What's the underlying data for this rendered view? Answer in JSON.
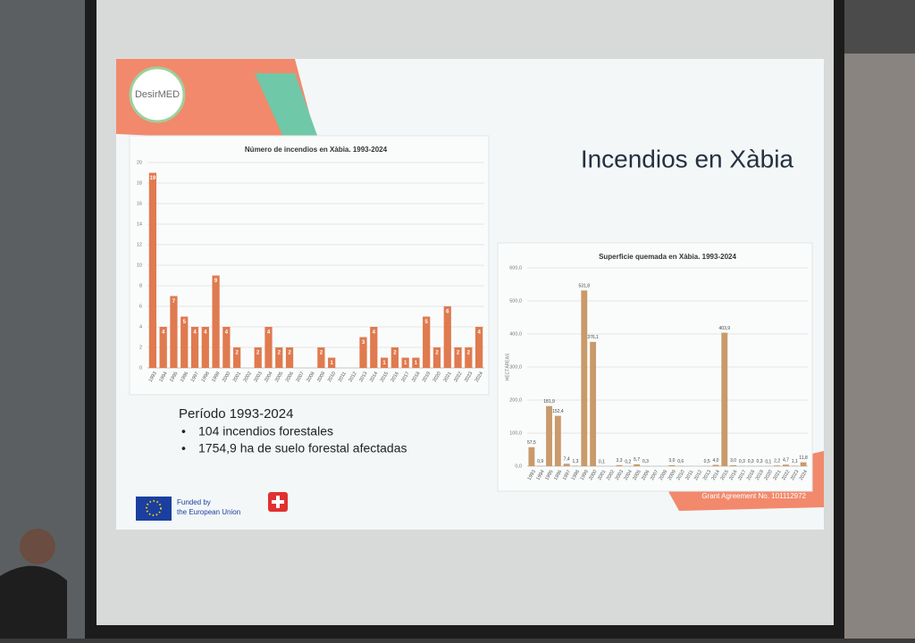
{
  "slide": {
    "logo": "DesirMED",
    "title": "Incendios en Xàbia",
    "period": "Período 1993-2024",
    "bullets": [
      "104 incendios forestales",
      "1754,9 ha de suelo forestal afectadas"
    ],
    "funding": [
      "Funded by",
      "the European Union"
    ],
    "grant": "Grant Agreement No. 101112972"
  },
  "chart_data": [
    {
      "type": "bar",
      "title": "Número de incendios en Xàbia. 1993-2024",
      "categories": [
        "1993",
        "1994",
        "1995",
        "1996",
        "1997",
        "1998",
        "1999",
        "2000",
        "2001",
        "2002",
        "2003",
        "2004",
        "2005",
        "2006",
        "2007",
        "2008",
        "2009",
        "2010",
        "2011",
        "2012",
        "2013",
        "2014",
        "2015",
        "2016",
        "2017",
        "2018",
        "2019",
        "2020",
        "2021",
        "2022",
        "2023",
        "2024"
      ],
      "values": [
        19,
        4,
        7,
        5,
        4,
        4,
        9,
        4,
        2,
        0,
        2,
        4,
        2,
        2,
        0,
        0,
        2,
        1,
        0,
        0,
        3,
        4,
        1,
        2,
        1,
        1,
        5,
        2,
        6,
        2,
        2,
        4
      ],
      "color": "#e07a4f",
      "ylim": [
        0,
        20
      ],
      "yticks": [
        0,
        2,
        4,
        6,
        8,
        10,
        12,
        14,
        16,
        18,
        20
      ],
      "grid": true
    },
    {
      "type": "bar",
      "title": "Superficie quemada en Xàbia. 1993-2024",
      "y_label": "HECTÁREAS",
      "categories": [
        "1993",
        "1994",
        "1995",
        "1996",
        "1997",
        "1998",
        "1999",
        "2000",
        "2001",
        "2002",
        "2003",
        "2004",
        "2005",
        "2006",
        "2007",
        "2008",
        "2009",
        "2010",
        "2011",
        "2012",
        "2013",
        "2014",
        "2015",
        "2016",
        "2017",
        "2018",
        "2019",
        "2020",
        "2021",
        "2022",
        "2023",
        "2024"
      ],
      "values": [
        57.5,
        0.9,
        181.9,
        152.4,
        7.4,
        1.3,
        531.8,
        376.1,
        0.1,
        0,
        3.3,
        0.2,
        5.7,
        0.3,
        0,
        0,
        3.0,
        0.6,
        0,
        0,
        0.5,
        4.0,
        403.9,
        3.0,
        0.3,
        0.3,
        0.3,
        0.1,
        2.2,
        4.7,
        1.1,
        11.8
      ],
      "value_labels": [
        "57,5",
        "0,9",
        "181,9",
        "152,4",
        "7,4",
        "1,3",
        "531,8",
        "376,1",
        "0,1",
        null,
        "3,3",
        "0,2",
        "5,7",
        "0,3",
        null,
        null,
        "3,0",
        "0,6",
        null,
        null,
        "0,5",
        "4,0",
        "403,9",
        "3,0",
        "0,3",
        "0,3",
        "0,3",
        "0,1",
        "2,2",
        "4,7",
        "1,1",
        "11,8"
      ],
      "color": "#c99a6a",
      "ylim": [
        0,
        600
      ],
      "yticks": [
        {
          "value": 0,
          "label": "0,0"
        },
        {
          "value": 100,
          "label": "100,0"
        },
        {
          "value": 200,
          "label": "200,0"
        },
        {
          "value": 300,
          "label": "300,0"
        },
        {
          "value": 400,
          "label": "400,0"
        },
        {
          "value": 500,
          "label": "500,0"
        },
        {
          "value": 600,
          "label": "600,0"
        }
      ],
      "grid": true
    }
  ]
}
